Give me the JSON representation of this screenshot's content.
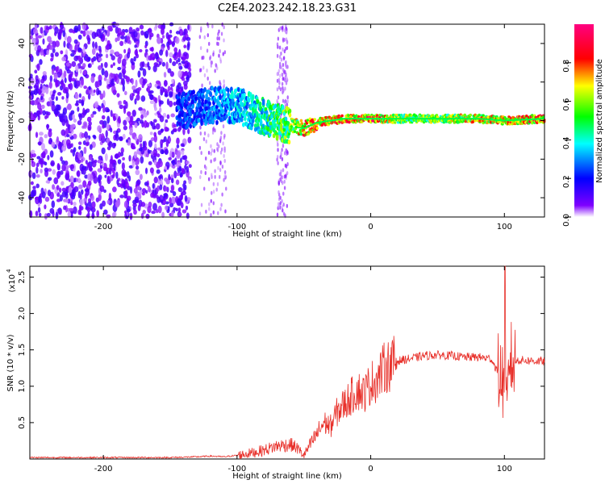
{
  "title": "C2E4.2023.242.18.23.G31",
  "chart_data": [
    {
      "type": "heatmap",
      "xlabel": "Height of straight line (km)",
      "ylabel": "Frequency (Hz)",
      "xlim": [
        -255,
        130
      ],
      "ylim": [
        -50,
        50
      ],
      "xticks": [
        -200,
        -100,
        0,
        100
      ],
      "yticks": [
        -40,
        -20,
        0,
        20,
        40
      ],
      "colorbar": {
        "label": "Normalized spectral amplitude",
        "range": [
          0.0,
          1.0
        ],
        "ticks": [
          0.0,
          0.2,
          0.4,
          0.6,
          0.8
        ],
        "colormap": [
          "#ffffff",
          "#7f00ff",
          "#0000ff",
          "#00ffff",
          "#00ff00",
          "#ffff00",
          "#ff0000",
          "#ff0080"
        ]
      },
      "trace": {
        "description_points": [
          {
            "height": -140,
            "frequency": 5,
            "amplitude": 0.25
          },
          {
            "height": -120,
            "frequency": 8,
            "amplitude": 0.3
          },
          {
            "height": -100,
            "frequency": 8,
            "amplitude": 0.35
          },
          {
            "height": -80,
            "frequency": 2,
            "amplitude": 0.45
          },
          {
            "height": -60,
            "frequency": -3,
            "amplitude": 0.6
          },
          {
            "height": -50,
            "frequency": -4,
            "amplitude": 0.8
          },
          {
            "height": -40,
            "frequency": -1,
            "amplitude": 0.75
          },
          {
            "height": -20,
            "frequency": 1,
            "amplitude": 0.8
          },
          {
            "height": 0,
            "frequency": 1,
            "amplitude": 0.85
          },
          {
            "height": 20,
            "frequency": 1,
            "amplitude": 0.6
          },
          {
            "height": 50,
            "frequency": 1,
            "amplitude": 0.6
          },
          {
            "height": 80,
            "frequency": 1,
            "amplitude": 0.7
          },
          {
            "height": 100,
            "frequency": 0,
            "amplitude": 0.75
          },
          {
            "height": 130,
            "frequency": 1,
            "amplitude": 0.8
          }
        ],
        "noise_region_height": [
          -255,
          -135
        ]
      }
    },
    {
      "type": "line",
      "xlabel": "Height of straight line (km)",
      "ylabel": "SNR (10 * v/v)",
      "yscale_label": "(x10",
      "yscale_exp": "4",
      "xlim": [
        -255,
        130
      ],
      "ylim": [
        0,
        2.65
      ],
      "xticks": [
        -200,
        -100,
        0,
        100
      ],
      "yticks": [
        0.5,
        1.0,
        1.5,
        2.0,
        2.5
      ],
      "ytick_labels": [
        "0.5",
        "1.0",
        "1.5",
        "2.0",
        "2.5"
      ],
      "series": [
        {
          "color": "#e8302a",
          "x": [
            -255,
            -200,
            -150,
            -130,
            -120,
            -110,
            -100,
            -90,
            -80,
            -70,
            -60,
            -55,
            -50,
            -45,
            -40,
            -35,
            -30,
            -25,
            -20,
            -15,
            -10,
            -5,
            0,
            5,
            10,
            15,
            20,
            30,
            40,
            50,
            60,
            70,
            80,
            90,
            95,
            98,
            100,
            102,
            104,
            106,
            110,
            120,
            130
          ],
          "y": [
            0.02,
            0.02,
            0.02,
            0.03,
            0.04,
            0.03,
            0.05,
            0.08,
            0.12,
            0.18,
            0.2,
            0.15,
            0.05,
            0.2,
            0.35,
            0.5,
            0.45,
            0.65,
            0.75,
            0.85,
            0.95,
            0.9,
            1.05,
            1.1,
            1.25,
            1.3,
            1.35,
            1.38,
            1.42,
            1.43,
            1.42,
            1.4,
            1.4,
            1.38,
            1.2,
            1.1,
            1.0,
            0.6,
            1.45,
            1.3,
            1.36,
            1.35,
            1.34
          ]
        }
      ]
    }
  ]
}
